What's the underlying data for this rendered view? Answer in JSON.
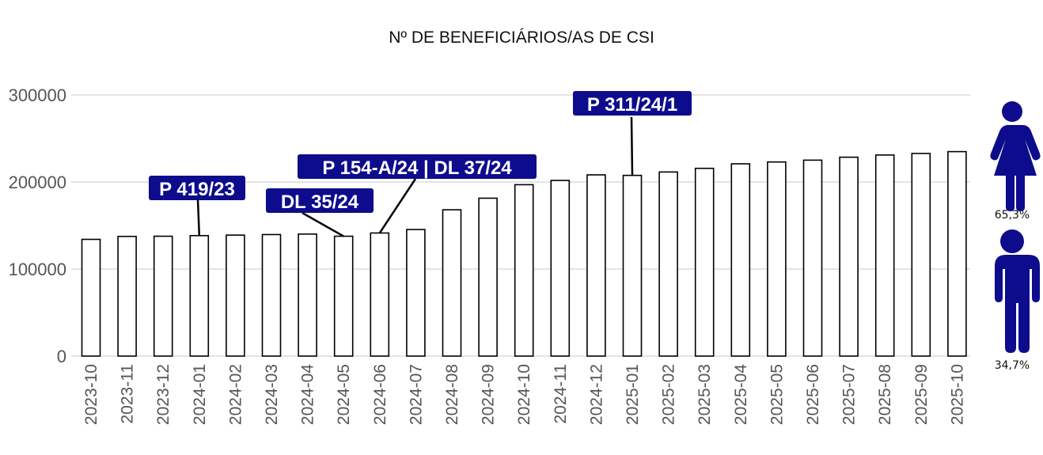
{
  "chart_data": {
    "type": "bar",
    "title": "Nº DE BENEFICIÁRIOS/AS DE CSI",
    "xlabel": "",
    "ylabel": "",
    "ylim": [
      0,
      300000
    ],
    "yticks": [
      0,
      100000,
      200000,
      300000
    ],
    "grid": true,
    "categories": [
      "2023-10",
      "2023-11",
      "2023-12",
      "2024-01",
      "2024-02",
      "2024-03",
      "2024-04",
      "2024-05",
      "2024-06",
      "2024-07",
      "2024-08",
      "2024-09",
      "2024-10",
      "2024-11",
      "2024-12",
      "2025-01",
      "2025-02",
      "2025-03",
      "2025-04",
      "2025-05",
      "2025-06",
      "2025-07",
      "2025-08",
      "2025-09",
      "2025-10"
    ],
    "values": [
      134100,
      137500,
      137700,
      138400,
      139000,
      139600,
      140200,
      137700,
      141400,
      145400,
      168100,
      181400,
      196900,
      201800,
      208200,
      207600,
      211500,
      215700,
      220900,
      223000,
      225100,
      228500,
      231000,
      232800,
      234900
    ],
    "annotations": [
      {
        "label": "P 419/23",
        "category": "2024-01"
      },
      {
        "label": "DL 35/24",
        "category": "2024-05"
      },
      {
        "label": "P 154-A/24 | DL 37/24",
        "category": "2024-06"
      },
      {
        "label": "P 311/24/1",
        "category": "2025-01"
      }
    ],
    "gender_split": [
      {
        "name": "female",
        "icon": "female-icon",
        "percent_label": "65,3%",
        "value": 65.3
      },
      {
        "name": "male",
        "icon": "male-icon",
        "percent_label": "34,7%",
        "value": 34.7
      }
    ],
    "colors": {
      "annotation": "#0d0c8c",
      "icon": "#0d0c8c",
      "bar_fill": "#ffffff",
      "bar_stroke": "#000000",
      "grid": "#c8c8c8"
    }
  }
}
